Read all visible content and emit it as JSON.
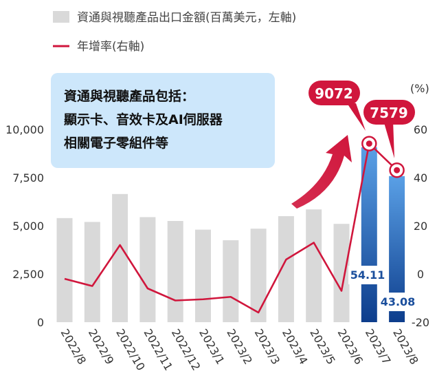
{
  "colors": {
    "bar_gray": "#d9d9d9",
    "bar_blue_top": "#5aa0e6",
    "bar_blue_bottom": "#0d3d8c",
    "line_red": "#d0163c",
    "note_bg": "#cde7fb"
  },
  "legend": {
    "bars_label": "資通與視聽產品出口金額(百萬美元，左軸)",
    "line_label": "年增率(右軸)"
  },
  "note": {
    "lines": [
      "資通與視聽產品包括：",
      "顯示卡、音效卡及AI伺服器",
      "相關電子零組件等"
    ]
  },
  "callouts": {
    "bar_2023_7": "9072",
    "bar_2023_8": "7579"
  },
  "growth_labels": {
    "g_2023_7": "54.11",
    "g_2023_8": "43.08"
  },
  "right_axis_unit": "(%)",
  "chart_data": {
    "type": "bar",
    "categories": [
      "2022/8",
      "2022/9",
      "2022/10",
      "2022/11",
      "2022/12",
      "2023/1",
      "2023/2",
      "2023/3",
      "2023/4",
      "2023/5",
      "2023/6",
      "2023/7",
      "2023/8"
    ],
    "series": [
      {
        "name": "資通與視聽產品出口金額(百萬美元，左軸)",
        "axis": "left",
        "values": [
          5400,
          5200,
          6650,
          5450,
          5250,
          4800,
          4250,
          4850,
          5500,
          5850,
          5100,
          9072,
          7579
        ],
        "highlight": [
          false,
          false,
          false,
          false,
          false,
          false,
          false,
          false,
          false,
          false,
          false,
          true,
          true
        ]
      },
      {
        "name": "年增率(右軸)",
        "axis": "right",
        "type": "line",
        "values": [
          -2,
          -5,
          12,
          -6,
          -11,
          -10.5,
          -9.5,
          -16,
          6,
          13,
          -7,
          54.11,
          43.08
        ]
      }
    ],
    "left_axis": {
      "ylim": [
        0,
        10000
      ],
      "ticks": [
        "0",
        "2,500",
        "5,000",
        "7,500",
        "10,000"
      ],
      "tick_values": [
        0,
        2500,
        5000,
        7500,
        10000
      ]
    },
    "right_axis": {
      "ylim": [
        -20,
        60
      ],
      "ticks": [
        "-20",
        "0",
        "20",
        "40",
        "60"
      ],
      "tick_values": [
        -20,
        0,
        20,
        40,
        60
      ]
    },
    "grid": false,
    "legend_position": "top-left"
  }
}
